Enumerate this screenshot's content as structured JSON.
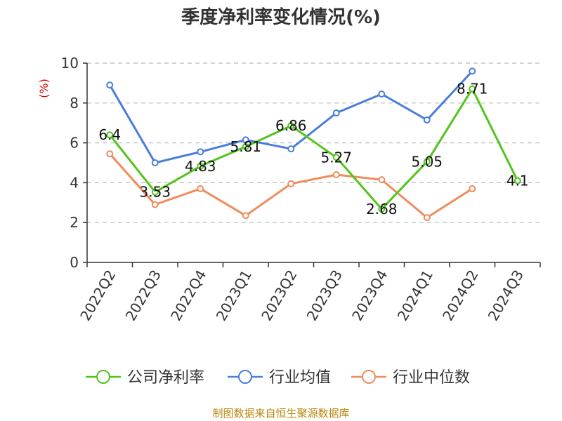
{
  "chart_data": {
    "type": "line",
    "title": "季度净利率变化情况(%)",
    "ylabel": "(%)",
    "xlabel": "",
    "categories": [
      "2022Q2",
      "2022Q3",
      "2022Q4",
      "2023Q1",
      "2023Q2",
      "2023Q3",
      "2023Q4",
      "2024Q1",
      "2024Q2",
      "2024Q3"
    ],
    "ylim": [
      0,
      10
    ],
    "yticks": [
      0,
      2,
      4,
      6,
      8,
      10
    ],
    "grid": true,
    "legend_position": "bottom",
    "series": [
      {
        "name": "公司净利率",
        "color": "#52c41a",
        "values": [
          6.4,
          3.53,
          4.83,
          5.81,
          6.86,
          5.27,
          2.68,
          5.05,
          8.71,
          4.1
        ],
        "labels": [
          "6.4",
          "3.53",
          "4.83",
          "5.81",
          "6.86",
          "5.27",
          "2.68",
          "5.05",
          "8.71",
          "4.1"
        ]
      },
      {
        "name": "行业均值",
        "color": "#4a7ddb",
        "values": [
          8.9,
          5.0,
          5.55,
          6.15,
          5.7,
          7.5,
          8.45,
          7.15,
          9.6,
          null
        ]
      },
      {
        "name": "行业中位数",
        "color": "#f08c5a",
        "values": [
          5.45,
          2.9,
          3.7,
          2.35,
          3.95,
          4.4,
          4.15,
          2.25,
          3.7,
          null
        ]
      }
    ]
  },
  "footer": {
    "source": "制图数据来自恒生聚源数据库"
  }
}
